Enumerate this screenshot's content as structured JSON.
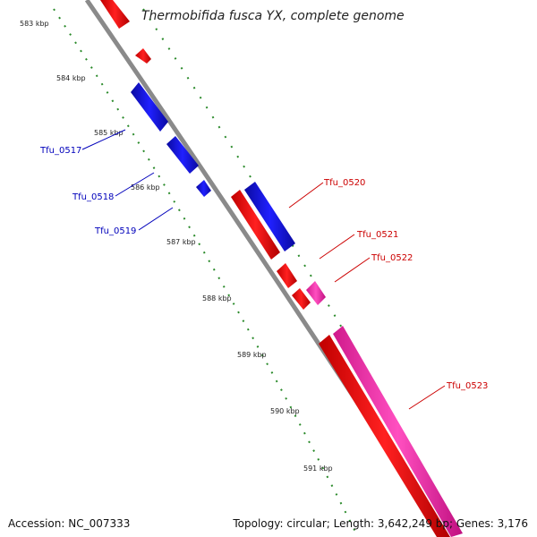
{
  "title": "Thermobifida fusca YX, complete genome",
  "footer": {
    "accession": "Accession: NC_007333",
    "summary": "Topology: circular; Length: 3,642,249 bp; Genes: 3,176"
  },
  "colors": {
    "backbone": "#8a8a8a",
    "tick": "#2a8a2a",
    "fwd_cds": "#ff1010",
    "fwd_other": "#ff2db0",
    "rev_cds": "#1414e6",
    "label_fwd": "#cc0000",
    "label_rev": "#0000bb"
  },
  "scale_labels": [
    "583 kbp",
    "584 kbp",
    "585 kbp",
    "586 kbp",
    "587 kbp",
    "588 kbp",
    "589 kbp",
    "590 kbp",
    "591 kbp"
  ],
  "gene_labels": [
    {
      "name": "Tfu_0517",
      "strand": "reverse"
    },
    {
      "name": "Tfu_0518",
      "strand": "reverse"
    },
    {
      "name": "Tfu_0519",
      "strand": "reverse"
    },
    {
      "name": "Tfu_0520",
      "strand": "forward"
    },
    {
      "name": "Tfu_0521",
      "strand": "forward"
    },
    {
      "name": "Tfu_0522",
      "strand": "forward"
    },
    {
      "name": "Tfu_0523",
      "strand": "forward"
    }
  ]
}
